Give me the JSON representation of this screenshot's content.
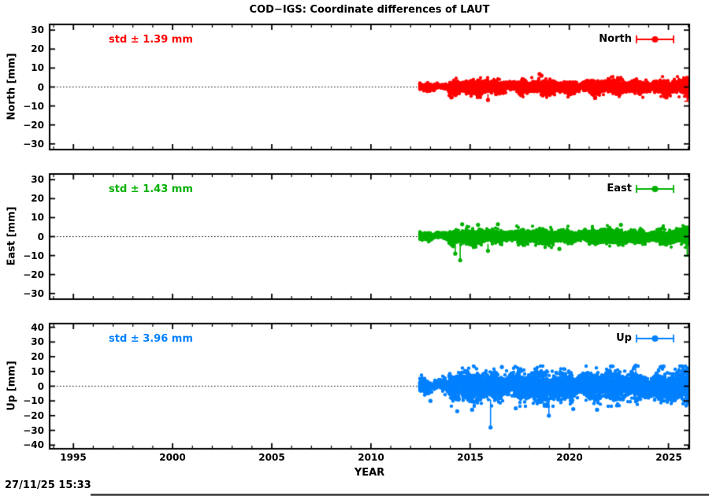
{
  "title": "COD−IGS: Coordinate differences of LAUT",
  "timestamp": "27/11/25 15:33",
  "x_axis": {
    "label": "YEAR",
    "xlim": [
      1993.8,
      2026.05
    ],
    "major_ticks": [
      {
        "value": 1995,
        "label": "1995"
      },
      {
        "value": 2000,
        "label": "2000"
      },
      {
        "value": 2005,
        "label": "2005"
      },
      {
        "value": 2010,
        "label": "2010"
      },
      {
        "value": 2015,
        "label": "2015"
      },
      {
        "value": 2020,
        "label": "2020"
      },
      {
        "value": 2025,
        "label": "2025"
      }
    ],
    "minor_step": 1
  },
  "chart_data": [
    {
      "type": "scatter",
      "name": "North",
      "legend_label": "North",
      "std_label": "std ± 1.39 mm",
      "std_mm": 1.39,
      "color": "#ff0000",
      "ylabel": "North [mm]",
      "ylim": [
        -33,
        33
      ],
      "yticks": [
        {
          "value": 30,
          "label": "30"
        },
        {
          "value": 20,
          "label": "20"
        },
        {
          "value": 10,
          "label": "10"
        },
        {
          "value": 0,
          "label": "0"
        },
        {
          "value": -10,
          "label": "−10"
        },
        {
          "value": -20,
          "label": "−20"
        },
        {
          "value": -30,
          "label": "−30"
        }
      ],
      "zero_line_y": 0,
      "data": {
        "x_start": 2012.45,
        "x_end": 2026.0,
        "mean_mm": 0.0,
        "sigma_mm": 1.39,
        "band_halfwidth_mm": 5.2,
        "early": {
          "until": 2013.9,
          "sigma_mm": 0.9
        },
        "outliers": [
          {
            "x": 2014.05,
            "y": -5.5,
            "stem": false
          },
          {
            "x": 2015.9,
            "y": -6.8,
            "stem": true
          },
          {
            "x": 2018.5,
            "y": 6.8,
            "stem": false
          },
          {
            "x": 2018.6,
            "y": 6.0,
            "stem": false
          },
          {
            "x": 2021.3,
            "y": -5.8,
            "stem": false
          },
          {
            "x": 2024.9,
            "y": -5.5,
            "stem": false
          }
        ],
        "edge_bar": [
          -7.5,
          4.5
        ]
      },
      "seed": 101
    },
    {
      "type": "scatter",
      "name": "East",
      "legend_label": "East",
      "std_label": "std ± 1.43 mm",
      "std_mm": 1.43,
      "color": "#00b000",
      "ylabel": "East [mm]",
      "ylim": [
        -33,
        33
      ],
      "yticks": [
        {
          "value": 30,
          "label": "30"
        },
        {
          "value": 20,
          "label": "20"
        },
        {
          "value": 10,
          "label": "10"
        },
        {
          "value": 0,
          "label": "0"
        },
        {
          "value": -10,
          "label": "−10"
        },
        {
          "value": -20,
          "label": "−20"
        },
        {
          "value": -30,
          "label": "−30"
        }
      ],
      "zero_line_y": 0,
      "data": {
        "x_start": 2012.45,
        "x_end": 2026.0,
        "mean_mm": 0.0,
        "sigma_mm": 1.43,
        "band_halfwidth_mm": 5.5,
        "early": {
          "until": 2013.9,
          "sigma_mm": 1.0
        },
        "outliers": [
          {
            "x": 2014.25,
            "y": -9.0,
            "stem": true
          },
          {
            "x": 2014.5,
            "y": -12.5,
            "stem": true
          },
          {
            "x": 2015.9,
            "y": -7.5,
            "stem": true
          },
          {
            "x": 2014.6,
            "y": 6.5,
            "stem": false
          },
          {
            "x": 2015.4,
            "y": 6.2,
            "stem": false
          },
          {
            "x": 2016.4,
            "y": 6.5,
            "stem": false
          },
          {
            "x": 2019.5,
            "y": -6.5,
            "stem": false
          },
          {
            "x": 2022.6,
            "y": 6.2,
            "stem": false
          }
        ],
        "edge_bar": [
          -10.3,
          5.5
        ]
      },
      "seed": 202
    },
    {
      "type": "scatter",
      "name": "Up",
      "legend_label": "Up",
      "std_label": "std ± 3.96 mm",
      "std_mm": 3.96,
      "color": "#0080ff",
      "ylabel": "Up [mm]",
      "ylim": [
        -42.5,
        42.5
      ],
      "yticks": [
        {
          "value": 40,
          "label": "40"
        },
        {
          "value": 30,
          "label": "30"
        },
        {
          "value": 20,
          "label": "20"
        },
        {
          "value": 10,
          "label": "10"
        },
        {
          "value": 0,
          "label": "0"
        },
        {
          "value": -10,
          "label": "−10"
        },
        {
          "value": -20,
          "label": "−20"
        },
        {
          "value": -30,
          "label": "−30"
        },
        {
          "value": -40,
          "label": "−40"
        }
      ],
      "zero_line_y": 0,
      "data": {
        "x_start": 2012.45,
        "x_end": 2026.0,
        "mean_mm": 0.0,
        "sigma_mm": 3.96,
        "band_halfwidth_mm": 13.0,
        "early": {
          "until": 2013.9,
          "sigma_mm": 2.3
        },
        "outliers": [
          {
            "x": 2016.03,
            "y": -28.0,
            "stem": true
          },
          {
            "x": 2018.97,
            "y": -20.0,
            "stem": true
          },
          {
            "x": 2014.35,
            "y": -17.0,
            "stem": false
          },
          {
            "x": 2015.1,
            "y": -16.0,
            "stem": false
          },
          {
            "x": 2017.3,
            "y": -15.0,
            "stem": false
          },
          {
            "x": 2020.2,
            "y": -15.5,
            "stem": false
          },
          {
            "x": 2021.4,
            "y": -16.0,
            "stem": false
          },
          {
            "x": 2013.0,
            "y": -10.0,
            "stem": false
          },
          {
            "x": 2016.6,
            "y": 13.0,
            "stem": false
          },
          {
            "x": 2022.1,
            "y": 13.5,
            "stem": false
          },
          {
            "x": 2023.35,
            "y": 14.0,
            "stem": true
          },
          {
            "x": 2024.75,
            "y": 13.5,
            "stem": false
          }
        ],
        "edge_bar": [
          -12.5,
          11.5
        ]
      },
      "seed": 303
    }
  ]
}
